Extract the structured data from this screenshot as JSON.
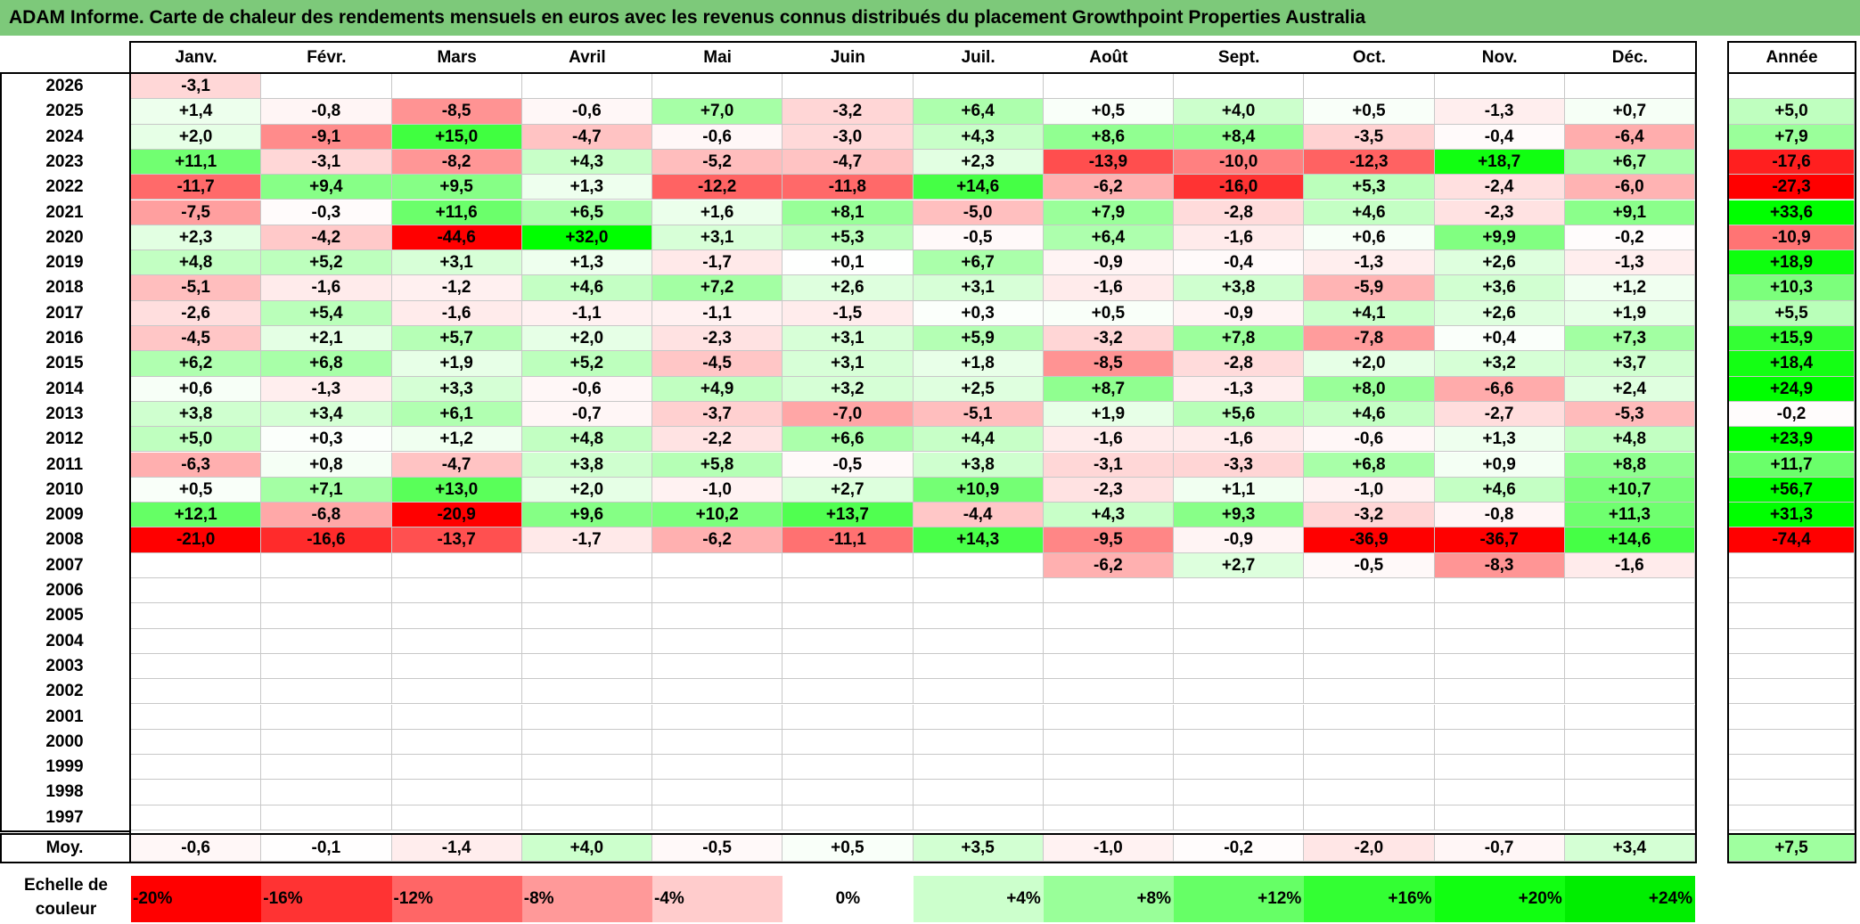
{
  "title": "ADAM Informe. Carte de chaleur des rendements mensuels en euros avec les revenus connus distribués du placement Growthpoint Properties Australia",
  "chart_data": {
    "type": "heatmap",
    "months": [
      "Janv.",
      "Févr.",
      "Mars",
      "Avril",
      "Mai",
      "Juin",
      "Juil.",
      "Août",
      "Sept.",
      "Oct.",
      "Nov.",
      "Déc."
    ],
    "year_column_label": "Année",
    "rows": [
      {
        "year": "2026",
        "values": [
          "-3,1",
          "",
          "",
          "",
          "",
          "",
          "",
          "",
          "",
          "",
          "",
          ""
        ],
        "annual": ""
      },
      {
        "year": "2025",
        "values": [
          "+1,4",
          "-0,8",
          "-8,5",
          "-0,6",
          "+7,0",
          "-3,2",
          "+6,4",
          "+0,5",
          "+4,0",
          "+0,5",
          "-1,3",
          "+0,7"
        ],
        "annual": "+5,0"
      },
      {
        "year": "2024",
        "values": [
          "+2,0",
          "-9,1",
          "+15,0",
          "-4,7",
          "-0,6",
          "-3,0",
          "+4,3",
          "+8,6",
          "+8,4",
          "-3,5",
          "-0,4",
          "-6,4"
        ],
        "annual": "+7,9"
      },
      {
        "year": "2023",
        "values": [
          "+11,1",
          "-3,1",
          "-8,2",
          "+4,3",
          "-5,2",
          "-4,7",
          "+2,3",
          "-13,9",
          "-10,0",
          "-12,3",
          "+18,7",
          "+6,7"
        ],
        "annual": "-17,6"
      },
      {
        "year": "2022",
        "values": [
          "-11,7",
          "+9,4",
          "+9,5",
          "+1,3",
          "-12,2",
          "-11,8",
          "+14,6",
          "-6,2",
          "-16,0",
          "+5,3",
          "-2,4",
          "-6,0"
        ],
        "annual": "-27,3"
      },
      {
        "year": "2021",
        "values": [
          "-7,5",
          "-0,3",
          "+11,6",
          "+6,5",
          "+1,6",
          "+8,1",
          "-5,0",
          "+7,9",
          "-2,8",
          "+4,6",
          "-2,3",
          "+9,1"
        ],
        "annual": "+33,6"
      },
      {
        "year": "2020",
        "values": [
          "+2,3",
          "-4,2",
          "-44,6",
          "+32,0",
          "+3,1",
          "+5,3",
          "-0,5",
          "+6,4",
          "-1,6",
          "+0,6",
          "+9,9",
          "-0,2"
        ],
        "annual": "-10,9"
      },
      {
        "year": "2019",
        "values": [
          "+4,8",
          "+5,2",
          "+3,1",
          "+1,3",
          "-1,7",
          "+0,1",
          "+6,7",
          "-0,9",
          "-0,4",
          "-1,3",
          "+2,6",
          "-1,3"
        ],
        "annual": "+18,9"
      },
      {
        "year": "2018",
        "values": [
          "-5,1",
          "-1,6",
          "-1,2",
          "+4,6",
          "+7,2",
          "+2,6",
          "+3,1",
          "-1,6",
          "+3,8",
          "-5,9",
          "+3,6",
          "+1,2"
        ],
        "annual": "+10,3"
      },
      {
        "year": "2017",
        "values": [
          "-2,6",
          "+5,4",
          "-1,6",
          "-1,1",
          "-1,1",
          "-1,5",
          "+0,3",
          "+0,5",
          "-0,9",
          "+4,1",
          "+2,6",
          "+1,9"
        ],
        "annual": "+5,5"
      },
      {
        "year": "2016",
        "values": [
          "-4,5",
          "+2,1",
          "+5,7",
          "+2,0",
          "-2,3",
          "+3,1",
          "+5,9",
          "-3,2",
          "+7,8",
          "-7,8",
          "+0,4",
          "+7,3"
        ],
        "annual": "+15,9"
      },
      {
        "year": "2015",
        "values": [
          "+6,2",
          "+6,8",
          "+1,9",
          "+5,2",
          "-4,5",
          "+3,1",
          "+1,8",
          "-8,5",
          "-2,8",
          "+2,0",
          "+3,2",
          "+3,7"
        ],
        "annual": "+18,4"
      },
      {
        "year": "2014",
        "values": [
          "+0,6",
          "-1,3",
          "+3,3",
          "-0,6",
          "+4,9",
          "+3,2",
          "+2,5",
          "+8,7",
          "-1,3",
          "+8,0",
          "-6,6",
          "+2,4"
        ],
        "annual": "+24,9"
      },
      {
        "year": "2013",
        "values": [
          "+3,8",
          "+3,4",
          "+6,1",
          "-0,7",
          "-3,7",
          "-7,0",
          "-5,1",
          "+1,9",
          "+5,6",
          "+4,6",
          "-2,7",
          "-5,3"
        ],
        "annual": "-0,2"
      },
      {
        "year": "2012",
        "values": [
          "+5,0",
          "+0,3",
          "+1,2",
          "+4,8",
          "-2,2",
          "+6,6",
          "+4,4",
          "-1,6",
          "-1,6",
          "-0,6",
          "+1,3",
          "+4,8"
        ],
        "annual": "+23,9"
      },
      {
        "year": "2011",
        "values": [
          "-6,3",
          "+0,8",
          "-4,7",
          "+3,8",
          "+5,8",
          "-0,5",
          "+3,8",
          "-3,1",
          "-3,3",
          "+6,8",
          "+0,9",
          "+8,8"
        ],
        "annual": "+11,7"
      },
      {
        "year": "2010",
        "values": [
          "+0,5",
          "+7,1",
          "+13,0",
          "+2,0",
          "-1,0",
          "+2,7",
          "+10,9",
          "-2,3",
          "+1,1",
          "-1,0",
          "+4,6",
          "+10,7"
        ],
        "annual": "+56,7"
      },
      {
        "year": "2009",
        "values": [
          "+12,1",
          "-6,8",
          "-20,9",
          "+9,6",
          "+10,2",
          "+13,7",
          "-4,4",
          "+4,3",
          "+9,3",
          "-3,2",
          "-0,8",
          "+11,3"
        ],
        "annual": "+31,3"
      },
      {
        "year": "2008",
        "values": [
          "-21,0",
          "-16,6",
          "-13,7",
          "-1,7",
          "-6,2",
          "-11,1",
          "+14,3",
          "-9,5",
          "-0,9",
          "-36,9",
          "-36,7",
          "+14,6"
        ],
        "annual": "-74,4"
      },
      {
        "year": "2007",
        "values": [
          "",
          "",
          "",
          "",
          "",
          "",
          "",
          "-6,2",
          "+2,7",
          "-0,5",
          "-8,3",
          "-1,6"
        ],
        "annual": ""
      },
      {
        "year": "2006",
        "values": [
          "",
          "",
          "",
          "",
          "",
          "",
          "",
          "",
          "",
          "",
          "",
          ""
        ],
        "annual": ""
      },
      {
        "year": "2005",
        "values": [
          "",
          "",
          "",
          "",
          "",
          "",
          "",
          "",
          "",
          "",
          "",
          ""
        ],
        "annual": ""
      },
      {
        "year": "2004",
        "values": [
          "",
          "",
          "",
          "",
          "",
          "",
          "",
          "",
          "",
          "",
          "",
          ""
        ],
        "annual": ""
      },
      {
        "year": "2003",
        "values": [
          "",
          "",
          "",
          "",
          "",
          "",
          "",
          "",
          "",
          "",
          "",
          ""
        ],
        "annual": ""
      },
      {
        "year": "2002",
        "values": [
          "",
          "",
          "",
          "",
          "",
          "",
          "",
          "",
          "",
          "",
          "",
          ""
        ],
        "annual": ""
      },
      {
        "year": "2001",
        "values": [
          "",
          "",
          "",
          "",
          "",
          "",
          "",
          "",
          "",
          "",
          "",
          ""
        ],
        "annual": ""
      },
      {
        "year": "2000",
        "values": [
          "",
          "",
          "",
          "",
          "",
          "",
          "",
          "",
          "",
          "",
          "",
          ""
        ],
        "annual": ""
      },
      {
        "year": "1999",
        "values": [
          "",
          "",
          "",
          "",
          "",
          "",
          "",
          "",
          "",
          "",
          "",
          ""
        ],
        "annual": ""
      },
      {
        "year": "1998",
        "values": [
          "",
          "",
          "",
          "",
          "",
          "",
          "",
          "",
          "",
          "",
          "",
          ""
        ],
        "annual": ""
      },
      {
        "year": "1997",
        "values": [
          "",
          "",
          "",
          "",
          "",
          "",
          "",
          "",
          "",
          "",
          "",
          ""
        ],
        "annual": ""
      }
    ],
    "average": {
      "label": "Moy.",
      "values": [
        "-0,6",
        "-0,1",
        "-1,4",
        "+4,0",
        "-0,5",
        "+0,5",
        "+3,5",
        "-1,0",
        "-0,2",
        "-2,0",
        "-0,7",
        "+3,4"
      ],
      "annual": "+7,5"
    },
    "color_scale": {
      "label_line1": "Echelle de",
      "label_line2": "couleur",
      "stops": [
        {
          "label": "-20%",
          "value": -20,
          "color": "#ff0000"
        },
        {
          "label": "-16%",
          "value": -16,
          "color": "#ff3333"
        },
        {
          "label": "-12%",
          "value": -12,
          "color": "#ff6666"
        },
        {
          "label": "-8%",
          "value": -8,
          "color": "#ff9999"
        },
        {
          "label": "-4%",
          "value": -4,
          "color": "#ffcccc"
        },
        {
          "label": "0%",
          "value": 0,
          "color": "#ffffff"
        },
        {
          "label": "+4%",
          "value": 4,
          "color": "#ccffcc"
        },
        {
          "label": "+8%",
          "value": 8,
          "color": "#99ff99"
        },
        {
          "label": "+12%",
          "value": 12,
          "color": "#66ff66"
        },
        {
          "label": "+16%",
          "value": 16,
          "color": "#33ff33"
        },
        {
          "label": "+20%",
          "value": 20,
          "color": "#11ff11"
        },
        {
          "label": "+24%",
          "value": 24,
          "color": "#00ee00"
        }
      ]
    }
  }
}
